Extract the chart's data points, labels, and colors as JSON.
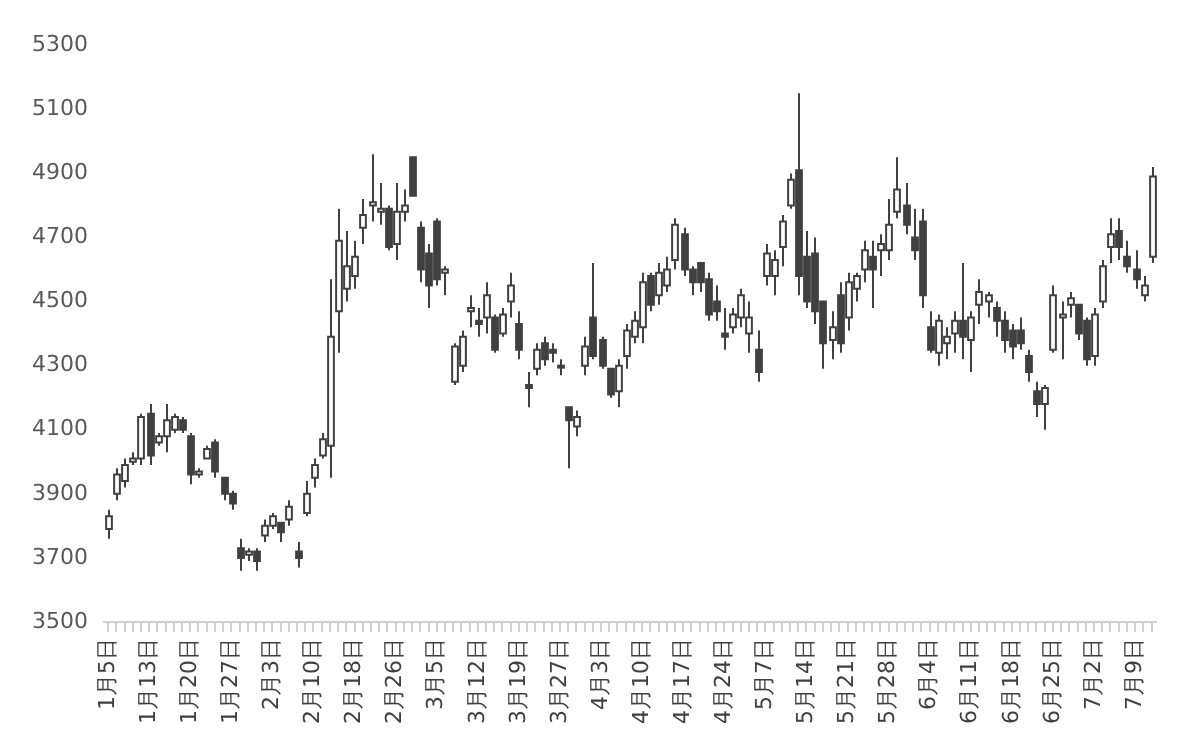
{
  "chart_data": {
    "type": "candlestick",
    "color": "#404040",
    "categories": [
      "1月5日",
      null,
      null,
      null,
      null,
      "1月13日",
      null,
      null,
      null,
      null,
      "1月20日",
      null,
      null,
      null,
      null,
      "1月27日",
      null,
      null,
      null,
      null,
      "2月3日",
      null,
      null,
      null,
      null,
      "2月10日",
      null,
      null,
      null,
      null,
      "2月18日",
      null,
      null,
      null,
      null,
      "2月26日",
      null,
      null,
      null,
      null,
      "3月5日",
      null,
      null,
      null,
      null,
      "3月12日",
      null,
      null,
      null,
      null,
      "3月19日",
      null,
      null,
      null,
      null,
      "3月27日",
      null,
      null,
      null,
      null,
      "4月3日",
      null,
      null,
      null,
      null,
      "4月10日",
      null,
      null,
      null,
      null,
      "4月17日",
      null,
      null,
      null,
      null,
      "4月24日",
      null,
      null,
      null,
      null,
      "5月7日",
      null,
      null,
      null,
      null,
      "5月14日",
      null,
      null,
      null,
      null,
      "5月21日",
      null,
      null,
      null,
      null,
      "5月28日",
      null,
      null,
      null,
      null,
      "6月4日",
      null,
      null,
      null,
      null,
      "6月11日",
      null,
      null,
      null,
      null,
      "6月18日",
      null,
      null,
      null,
      null,
      "6月25日",
      null,
      null,
      null,
      null,
      "7月2日",
      null,
      null,
      null,
      null,
      "7月9日",
      null,
      null
    ],
    "ohlc": [
      [
        3790,
        3850,
        3760,
        3830
      ],
      [
        3900,
        3980,
        3880,
        3960
      ],
      [
        3940,
        4010,
        3920,
        3990
      ],
      [
        4000,
        4030,
        3990,
        4010
      ],
      [
        4010,
        4150,
        3990,
        4140
      ],
      [
        4150,
        4180,
        3990,
        4020
      ],
      [
        4060,
        4090,
        4050,
        4080
      ],
      [
        4080,
        4180,
        4030,
        4130
      ],
      [
        4100,
        4150,
        4090,
        4140
      ],
      [
        4130,
        4140,
        4090,
        4100
      ],
      [
        4080,
        4090,
        3930,
        3960
      ],
      [
        3960,
        3980,
        3950,
        3970
      ],
      [
        4010,
        4050,
        4010,
        4040
      ],
      [
        4060,
        4070,
        3950,
        3970
      ],
      [
        3950,
        3950,
        3880,
        3900
      ],
      [
        3900,
        3910,
        3850,
        3870
      ],
      [
        3730,
        3760,
        3660,
        3700
      ],
      [
        3710,
        3730,
        3690,
        3720
      ],
      [
        3720,
        3730,
        3660,
        3690
      ],
      [
        3770,
        3820,
        3750,
        3800
      ],
      [
        3800,
        3840,
        3790,
        3830
      ],
      [
        3810,
        3810,
        3750,
        3780
      ],
      [
        3820,
        3880,
        3800,
        3860
      ],
      [
        3720,
        3750,
        3670,
        3700
      ],
      [
        3840,
        3940,
        3830,
        3900
      ],
      [
        3950,
        4010,
        3920,
        3990
      ],
      [
        4020,
        4090,
        4010,
        4070
      ],
      [
        4050,
        4570,
        3950,
        4390
      ],
      [
        4470,
        4790,
        4340,
        4690
      ],
      [
        4540,
        4720,
        4500,
        4610
      ],
      [
        4580,
        4690,
        4540,
        4640
      ],
      [
        4730,
        4820,
        4680,
        4770
      ],
      [
        4800,
        4960,
        4750,
        4810
      ],
      [
        4780,
        4870,
        4740,
        4790
      ],
      [
        4790,
        4800,
        4660,
        4670
      ],
      [
        4680,
        4870,
        4630,
        4780
      ],
      [
        4780,
        4850,
        4750,
        4800
      ],
      [
        4950,
        4950,
        4830,
        4830
      ],
      [
        4730,
        4750,
        4560,
        4600
      ],
      [
        4650,
        4680,
        4480,
        4550
      ],
      [
        4750,
        4760,
        4550,
        4570
      ],
      [
        4590,
        4610,
        4520,
        4600
      ],
      [
        4250,
        4370,
        4240,
        4360
      ],
      [
        4300,
        4410,
        4280,
        4390
      ],
      [
        4470,
        4520,
        4420,
        4480
      ],
      [
        4440,
        4480,
        4390,
        4430
      ],
      [
        4450,
        4560,
        4400,
        4520
      ],
      [
        4450,
        4460,
        4340,
        4350
      ],
      [
        4400,
        4480,
        4390,
        4460
      ],
      [
        4500,
        4590,
        4450,
        4550
      ],
      [
        4430,
        4470,
        4320,
        4350
      ],
      [
        4240,
        4280,
        4170,
        4230
      ],
      [
        4290,
        4370,
        4270,
        4350
      ],
      [
        4370,
        4390,
        4300,
        4320
      ],
      [
        4350,
        4370,
        4310,
        4340
      ],
      [
        4300,
        4320,
        4270,
        4300
      ],
      [
        4170,
        4170,
        3980,
        4130
      ],
      [
        4110,
        4160,
        4080,
        4140
      ],
      [
        4300,
        4390,
        4270,
        4360
      ],
      [
        4450,
        4620,
        4320,
        4330
      ],
      [
        4380,
        4390,
        4290,
        4300
      ],
      [
        4290,
        4290,
        4200,
        4210
      ],
      [
        4220,
        4320,
        4170,
        4300
      ],
      [
        4330,
        4430,
        4290,
        4410
      ],
      [
        4390,
        4470,
        4370,
        4440
      ],
      [
        4420,
        4590,
        4370,
        4560
      ],
      [
        4580,
        4590,
        4470,
        4490
      ],
      [
        4520,
        4620,
        4490,
        4590
      ],
      [
        4550,
        4640,
        4530,
        4600
      ],
      [
        4630,
        4760,
        4600,
        4740
      ],
      [
        4710,
        4730,
        4580,
        4600
      ],
      [
        4600,
        4610,
        4520,
        4560
      ],
      [
        4620,
        4620,
        4530,
        4560
      ],
      [
        4570,
        4590,
        4440,
        4460
      ],
      [
        4500,
        4550,
        4440,
        4470
      ],
      [
        4400,
        4480,
        4350,
        4390
      ],
      [
        4420,
        4480,
        4400,
        4460
      ],
      [
        4450,
        4540,
        4420,
        4520
      ],
      [
        4400,
        4500,
        4340,
        4450
      ],
      [
        4350,
        4410,
        4250,
        4280
      ],
      [
        4580,
        4680,
        4550,
        4650
      ],
      [
        4580,
        4660,
        4520,
        4630
      ],
      [
        4670,
        4770,
        4610,
        4750
      ],
      [
        4800,
        4900,
        4790,
        4880
      ],
      [
        4910,
        5150,
        4520,
        4580
      ],
      [
        4640,
        4720,
        4480,
        4500
      ],
      [
        4650,
        4700,
        4430,
        4470
      ],
      [
        4500,
        4500,
        4290,
        4370
      ],
      [
        4380,
        4470,
        4320,
        4420
      ],
      [
        4520,
        4560,
        4340,
        4370
      ],
      [
        4450,
        4590,
        4410,
        4560
      ],
      [
        4540,
        4590,
        4500,
        4580
      ],
      [
        4600,
        4690,
        4560,
        4660
      ],
      [
        4640,
        4690,
        4480,
        4600
      ],
      [
        4660,
        4710,
        4580,
        4680
      ],
      [
        4660,
        4820,
        4630,
        4740
      ],
      [
        4780,
        4950,
        4760,
        4850
      ],
      [
        4800,
        4870,
        4710,
        4740
      ],
      [
        4700,
        4790,
        4630,
        4660
      ],
      [
        4750,
        4790,
        4480,
        4520
      ],
      [
        4420,
        4470,
        4340,
        4350
      ],
      [
        4340,
        4460,
        4300,
        4440
      ],
      [
        4370,
        4420,
        4320,
        4390
      ],
      [
        4400,
        4470,
        4340,
        4440
      ],
      [
        4440,
        4620,
        4320,
        4390
      ],
      [
        4380,
        4470,
        4280,
        4450
      ],
      [
        4490,
        4570,
        4430,
        4530
      ],
      [
        4500,
        4530,
        4450,
        4520
      ],
      [
        4480,
        4500,
        4390,
        4440
      ],
      [
        4440,
        4470,
        4340,
        4380
      ],
      [
        4410,
        4430,
        4320,
        4360
      ],
      [
        4410,
        4450,
        4350,
        4370
      ],
      [
        4330,
        4350,
        4250,
        4280
      ],
      [
        4220,
        4250,
        4140,
        4180
      ],
      [
        4180,
        4240,
        4100,
        4230
      ],
      [
        4350,
        4550,
        4340,
        4520
      ],
      [
        4450,
        4500,
        4320,
        4460
      ],
      [
        4490,
        4530,
        4450,
        4510
      ],
      [
        4490,
        4490,
        4380,
        4400
      ],
      [
        4440,
        4450,
        4300,
        4320
      ],
      [
        4330,
        4480,
        4300,
        4460
      ],
      [
        4500,
        4630,
        4480,
        4610
      ],
      [
        4670,
        4760,
        4620,
        4710
      ],
      [
        4720,
        4760,
        4630,
        4670
      ],
      [
        4640,
        4690,
        4590,
        4610
      ],
      [
        4600,
        4660,
        4540,
        4570
      ],
      [
        4520,
        4580,
        4500,
        4550
      ],
      [
        4640,
        4920,
        4620,
        4890
      ]
    ],
    "ylim": [
      3500,
      5300
    ],
    "yticks": [
      3500,
      3700,
      3900,
      4100,
      4300,
      4500,
      4700,
      4900,
      5100,
      5300
    ],
    "grid": false,
    "legend": false
  }
}
